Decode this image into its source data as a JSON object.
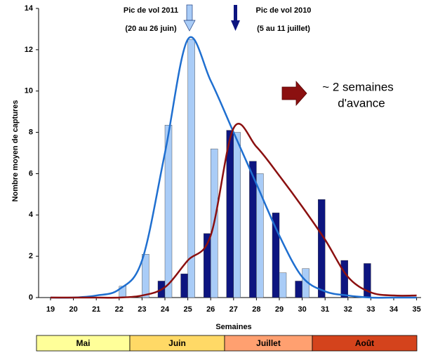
{
  "chart_data": {
    "type": "bar",
    "y_label": "Nombre moyen de captures",
    "x_label": "Semaines",
    "categories": [
      "19",
      "20",
      "21",
      "22",
      "23",
      "24",
      "25",
      "26",
      "27",
      "28",
      "29",
      "30",
      "31",
      "32",
      "33",
      "34",
      "35"
    ],
    "series": [
      {
        "type": "bar",
        "color": "#0d1580",
        "values": [
          0,
          0,
          0,
          0,
          0,
          0.8,
          1.15,
          3.1,
          8.1,
          6.6,
          4.1,
          0.8,
          4.75,
          1.8,
          1.65,
          0,
          0
        ]
      },
      {
        "type": "bar",
        "color": "#a9ccf7",
        "values": [
          0,
          0,
          0,
          0.55,
          2.1,
          8.35,
          12.5,
          7.2,
          8.0,
          6.0,
          1.2,
          1.4,
          0,
          0,
          0,
          0,
          0
        ]
      },
      {
        "type": "line",
        "color": "#1f6fd0",
        "values": [
          0,
          0,
          0.1,
          0.4,
          1.8,
          7,
          12.5,
          10.5,
          8,
          5.5,
          3,
          1,
          0.3,
          0.1,
          0,
          0,
          0
        ]
      },
      {
        "type": "line",
        "color": "#8b1010",
        "values": [
          0,
          0,
          0,
          0,
          0.1,
          0.5,
          1.8,
          3,
          8.2,
          7.3,
          5.9,
          4.4,
          2.8,
          1.0,
          0.25,
          0.1,
          0.1
        ]
      }
    ],
    "ylim": [
      0,
      14
    ],
    "yticks": [
      0,
      2,
      4,
      6,
      8,
      10,
      12,
      14
    ],
    "annotations": [
      "Pic de vol 2011",
      "(20 au 26 juin)",
      "Pic de vol 2010",
      "(5 au 11 juillet)",
      "~ 2 semaines",
      "d'avance"
    ],
    "months": [
      {
        "name": "Mai",
        "color": "#ffff99"
      },
      {
        "name": "Juin",
        "color": "#ffd966"
      },
      {
        "name": "Juillet",
        "color": "#ffa070"
      },
      {
        "name": "Août",
        "color": "#d4431c"
      }
    ]
  }
}
